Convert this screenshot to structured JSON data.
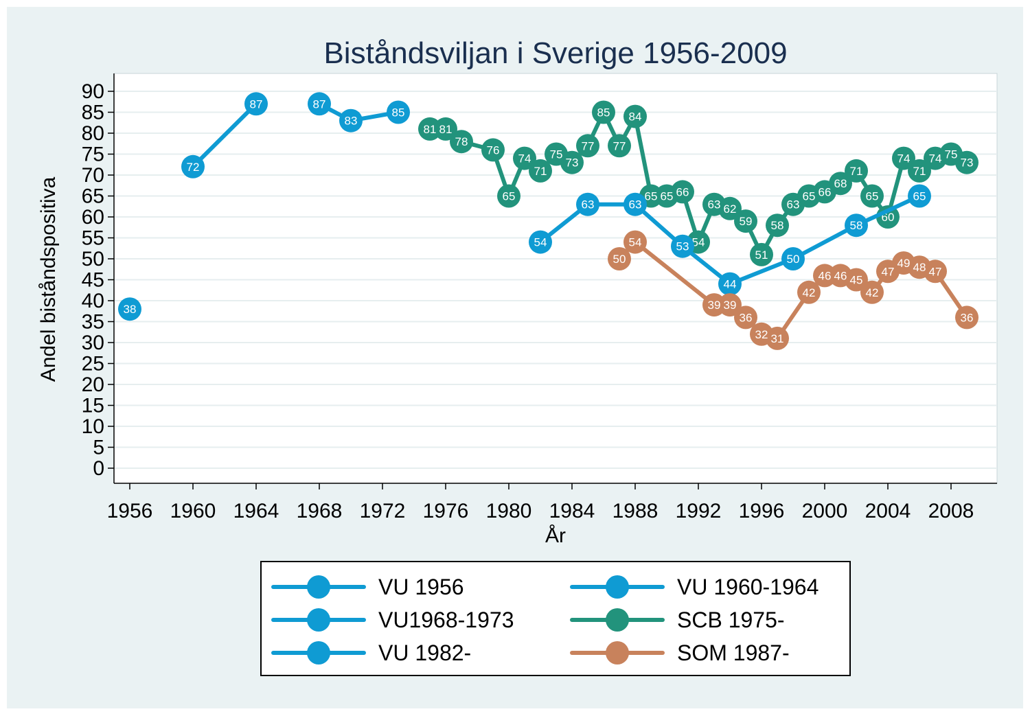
{
  "chart_data": {
    "type": "line",
    "title": "Biståndsviljan i Sverige 1956-2009",
    "xlabel": "År",
    "ylabel": "Andel biståndspositiva",
    "xlim": [
      1955,
      2011
    ],
    "ylim": [
      -3,
      92
    ],
    "x_ticks": [
      1956,
      1960,
      1964,
      1968,
      1972,
      1976,
      1980,
      1984,
      1988,
      1992,
      1996,
      2000,
      2004,
      2008
    ],
    "y_ticks": [
      0,
      5,
      10,
      15,
      20,
      25,
      30,
      35,
      40,
      45,
      50,
      55,
      60,
      65,
      70,
      75,
      80,
      85,
      90
    ],
    "grid": true,
    "legend_position": "bottom",
    "series": [
      {
        "name": "VU 1956",
        "color": "#0f9bd3",
        "x": [
          1956
        ],
        "values": [
          38
        ]
      },
      {
        "name": "VU 1960-1964",
        "color": "#0f9bd3",
        "x": [
          1960,
          1964
        ],
        "values": [
          72,
          87
        ]
      },
      {
        "name": "VU1968-1973",
        "color": "#0f9bd3",
        "x": [
          1968,
          1970,
          1973
        ],
        "values": [
          87,
          83,
          85
        ]
      },
      {
        "name": "SCB 1975-",
        "color": "#22937c",
        "x": [
          1975,
          1976,
          1977,
          1979,
          1980,
          1981,
          1982,
          1983,
          1984,
          1985,
          1986,
          1987,
          1988,
          1989,
          1990,
          1991,
          1992,
          1993,
          1994,
          1995,
          1996,
          1997,
          1998,
          1999,
          2000,
          2001,
          2002,
          2003,
          2004,
          2005,
          2006,
          2007,
          2008,
          2009
        ],
        "values": [
          81,
          81,
          78,
          76,
          65,
          74,
          71,
          75,
          73,
          77,
          85,
          77,
          84,
          65,
          65,
          66,
          54,
          63,
          62,
          59,
          51,
          58,
          63,
          65,
          66,
          68,
          71,
          65,
          60,
          74,
          71,
          74,
          75,
          73
        ]
      },
      {
        "name": "VU 1982-",
        "color": "#0f9bd3",
        "x": [
          1982,
          1985,
          1988,
          1991,
          1994,
          1998,
          2002,
          2006
        ],
        "values": [
          54,
          63,
          63,
          53,
          44,
          50,
          58,
          65
        ]
      },
      {
        "name": "SOM 1987-",
        "color": "#c8825c",
        "x": [
          1987,
          1988,
          1993,
          1994,
          1995,
          1996,
          1997,
          1999,
          2000,
          2001,
          2002,
          2003,
          2004,
          2005,
          2006,
          2007,
          2009
        ],
        "values": [
          50,
          54,
          39,
          39,
          36,
          32,
          31,
          42,
          46,
          46,
          45,
          42,
          47,
          49,
          48,
          47,
          36
        ]
      }
    ]
  }
}
